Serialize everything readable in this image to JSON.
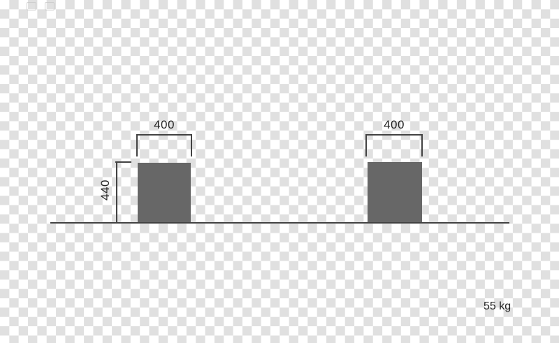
{
  "colors": {
    "checker_dark": "#e0e0e0",
    "checker_light": "#ffffff",
    "block_fill": "#676767",
    "line": "#424242",
    "text": "#222222",
    "artifact": "#c9c9c9"
  },
  "diagram": {
    "left_block": {
      "width_dim_label": "400",
      "height_dim_label": "440"
    },
    "right_block": {
      "width_dim_label": "400"
    },
    "weight_label": "55 kg"
  }
}
